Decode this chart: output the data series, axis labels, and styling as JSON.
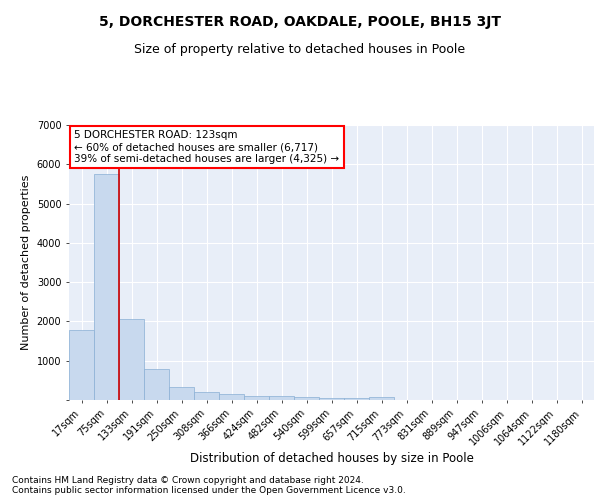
{
  "title": "5, DORCHESTER ROAD, OAKDALE, POOLE, BH15 3JT",
  "subtitle": "Size of property relative to detached houses in Poole",
  "xlabel": "Distribution of detached houses by size in Poole",
  "ylabel": "Number of detached properties",
  "bin_labels": [
    "17sqm",
    "75sqm",
    "133sqm",
    "191sqm",
    "250sqm",
    "308sqm",
    "366sqm",
    "424sqm",
    "482sqm",
    "540sqm",
    "599sqm",
    "657sqm",
    "715sqm",
    "773sqm",
    "831sqm",
    "889sqm",
    "947sqm",
    "1006sqm",
    "1064sqm",
    "1122sqm",
    "1180sqm"
  ],
  "bar_heights": [
    1780,
    5750,
    2070,
    800,
    340,
    200,
    165,
    110,
    100,
    65,
    60,
    55,
    80,
    0,
    0,
    0,
    0,
    0,
    0,
    0,
    0
  ],
  "bar_color": "#c8d9ee",
  "bar_edge_color": "#89afd4",
  "annotation_text": "5 DORCHESTER ROAD: 123sqm\n← 60% of detached houses are smaller (6,717)\n39% of semi-detached houses are larger (4,325) →",
  "annotation_box_color": "white",
  "annotation_box_edge_color": "red",
  "red_line_color": "#cc0000",
  "ylim": [
    0,
    7000
  ],
  "yticks": [
    0,
    1000,
    2000,
    3000,
    4000,
    5000,
    6000,
    7000
  ],
  "background_color": "#e8eef8",
  "grid_color": "white",
  "footer_text": "Contains HM Land Registry data © Crown copyright and database right 2024.\nContains public sector information licensed under the Open Government Licence v3.0.",
  "title_fontsize": 10,
  "subtitle_fontsize": 9,
  "xlabel_fontsize": 8.5,
  "ylabel_fontsize": 8,
  "tick_fontsize": 7,
  "annotation_fontsize": 7.5,
  "footer_fontsize": 6.5
}
